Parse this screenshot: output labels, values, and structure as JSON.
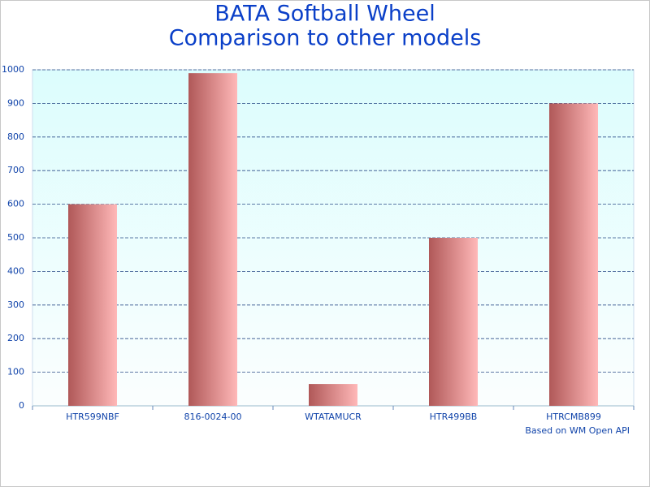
{
  "chart_data": {
    "type": "bar",
    "title": "BATA Softball Wheel",
    "subtitle": "Comparison to other models",
    "footnote": "Based on WM Open API",
    "categories": [
      "HTR599NBF",
      "816-0024-00",
      "WTATAMUCR",
      "HTR499BB",
      "HTRCMB899"
    ],
    "values": [
      600,
      990,
      65,
      500,
      900
    ],
    "color": "#c06060",
    "ylim": [
      0,
      1000
    ],
    "yticks": [
      0,
      100,
      200,
      300,
      400,
      500,
      600,
      700,
      800,
      900,
      1000
    ],
    "grid": true
  }
}
